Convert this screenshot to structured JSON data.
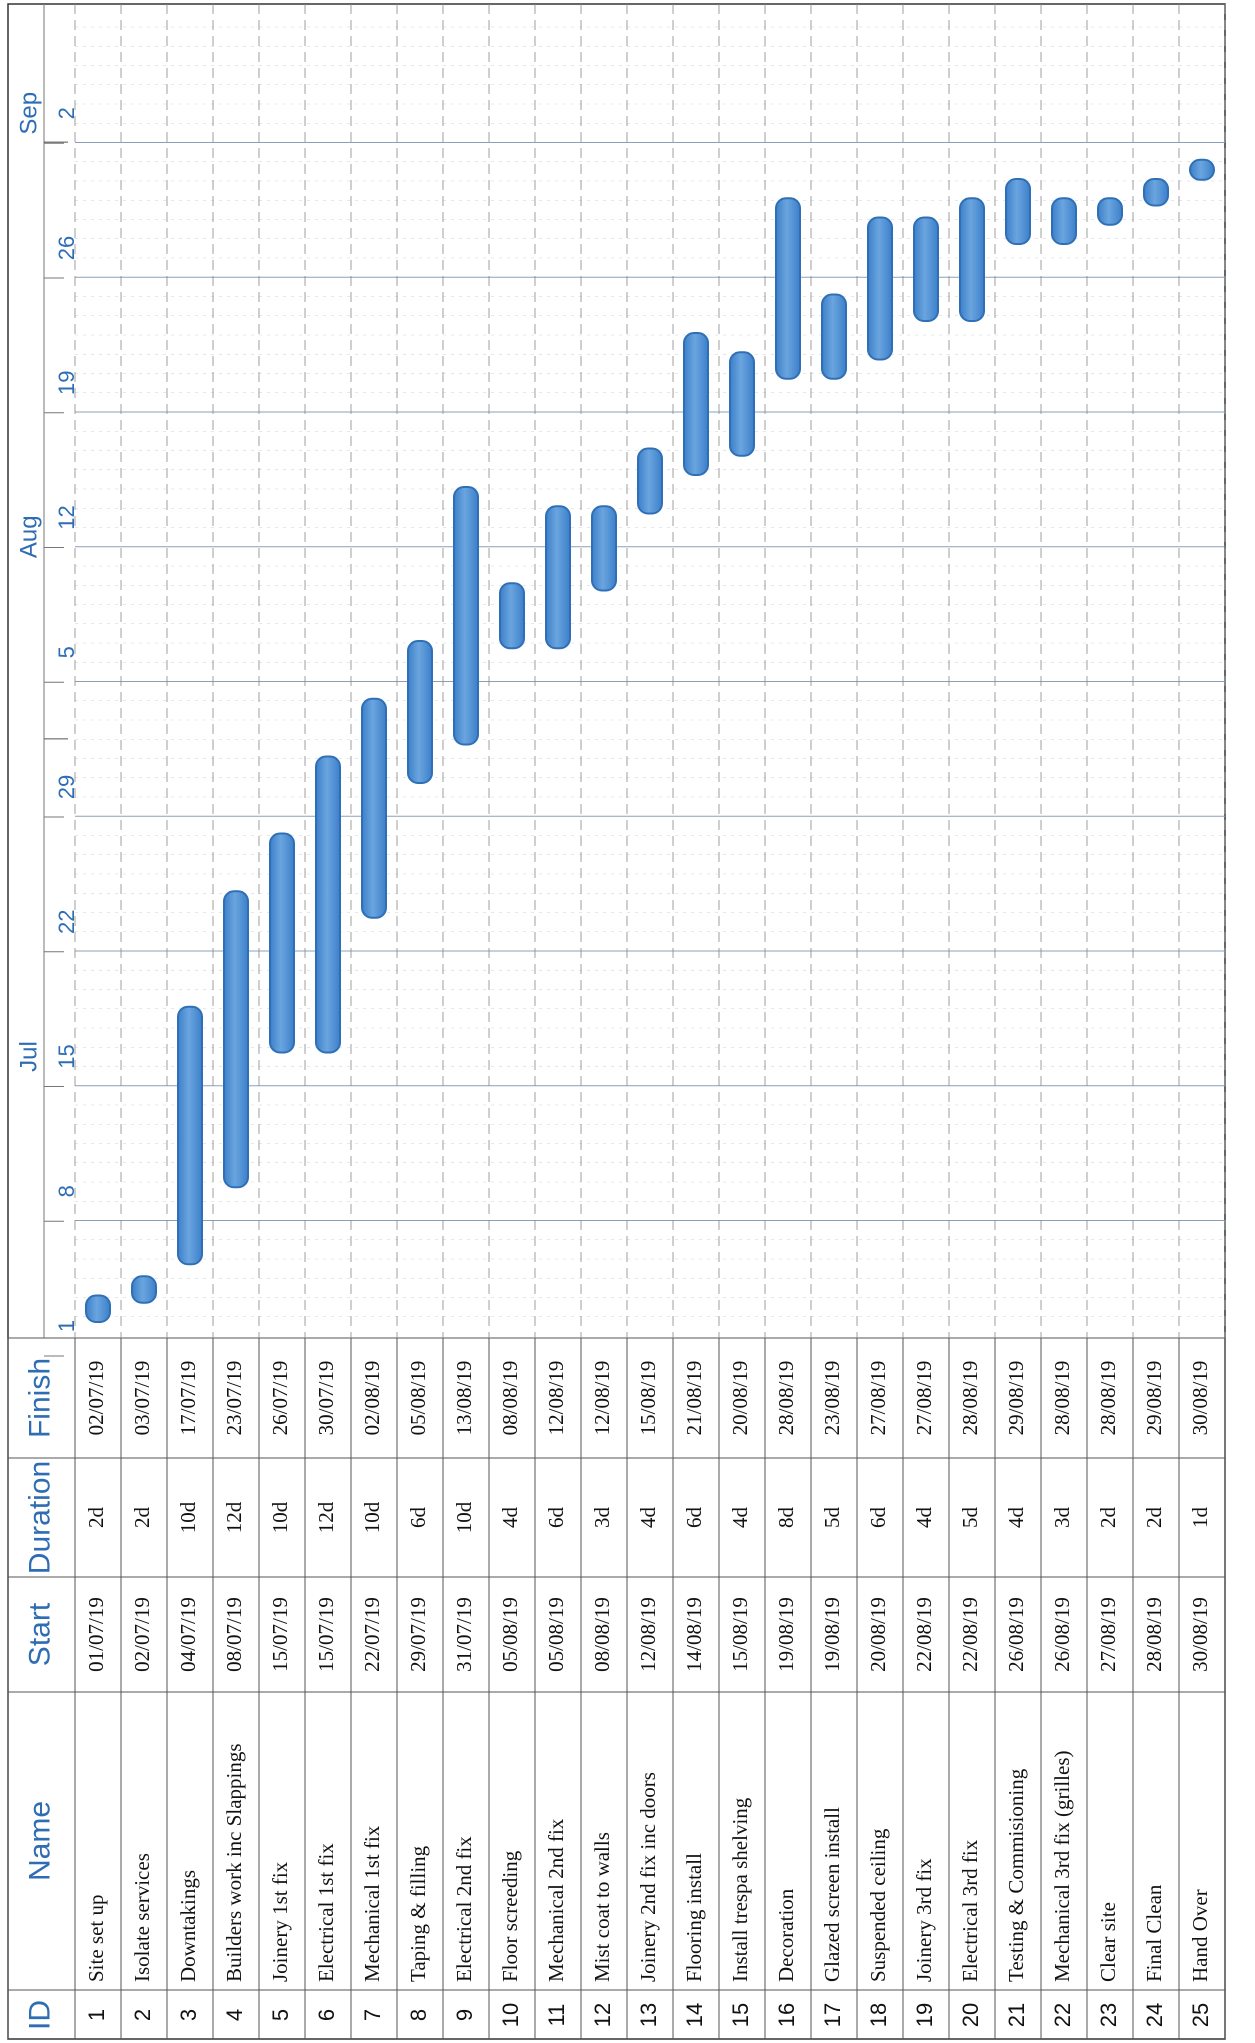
{
  "chart_data": {
    "type": "gantt",
    "columns": {
      "id": "ID",
      "name": "Name",
      "start": "Start",
      "duration": "Duration",
      "finish": "Finish"
    },
    "timeline": {
      "months": [
        "Jul",
        "Aug",
        "Sep"
      ],
      "week_ticks": [
        "1",
        "8",
        "15",
        "22",
        "29",
        "5",
        "12",
        "19",
        "26",
        "2"
      ]
    },
    "tasks": [
      {
        "id": "1",
        "name": "Site set up",
        "start": "01/07/19",
        "duration": "2d",
        "finish": "02/07/19"
      },
      {
        "id": "2",
        "name": "Isolate services",
        "start": "02/07/19",
        "duration": "2d",
        "finish": "03/07/19"
      },
      {
        "id": "3",
        "name": "Downtakings",
        "start": "04/07/19",
        "duration": "10d",
        "finish": "17/07/19"
      },
      {
        "id": "4",
        "name": "Builders work inc Slappings",
        "start": "08/07/19",
        "duration": "12d",
        "finish": "23/07/19"
      },
      {
        "id": "5",
        "name": "Joinery 1st fix",
        "start": "15/07/19",
        "duration": "10d",
        "finish": "26/07/19"
      },
      {
        "id": "6",
        "name": "Electrical 1st fix",
        "start": "15/07/19",
        "duration": "12d",
        "finish": "30/07/19"
      },
      {
        "id": "7",
        "name": "Mechanical 1st fix",
        "start": "22/07/19",
        "duration": "10d",
        "finish": "02/08/19"
      },
      {
        "id": "8",
        "name": "Taping & filling",
        "start": "29/07/19",
        "duration": "6d",
        "finish": "05/08/19"
      },
      {
        "id": "9",
        "name": "Electrical 2nd fix",
        "start": "31/07/19",
        "duration": "10d",
        "finish": "13/08/19"
      },
      {
        "id": "10",
        "name": "Floor screeding",
        "start": "05/08/19",
        "duration": "4d",
        "finish": "08/08/19"
      },
      {
        "id": "11",
        "name": "Mechanical 2nd fix",
        "start": "05/08/19",
        "duration": "6d",
        "finish": "12/08/19"
      },
      {
        "id": "12",
        "name": "Mist coat to walls",
        "start": "08/08/19",
        "duration": "3d",
        "finish": "12/08/19"
      },
      {
        "id": "13",
        "name": "Joinery 2nd fix inc doors",
        "start": "12/08/19",
        "duration": "4d",
        "finish": "15/08/19"
      },
      {
        "id": "14",
        "name": "Flooring install",
        "start": "14/08/19",
        "duration": "6d",
        "finish": "21/08/19"
      },
      {
        "id": "15",
        "name": "Install trespa shelving",
        "start": "15/08/19",
        "duration": "4d",
        "finish": "20/08/19"
      },
      {
        "id": "16",
        "name": "Decoration",
        "start": "19/08/19",
        "duration": "8d",
        "finish": "28/08/19"
      },
      {
        "id": "17",
        "name": "Glazed screen install",
        "start": "19/08/19",
        "duration": "5d",
        "finish": "23/08/19"
      },
      {
        "id": "18",
        "name": "Suspended ceiling",
        "start": "20/08/19",
        "duration": "6d",
        "finish": "27/08/19"
      },
      {
        "id": "19",
        "name": "Joinery 3rd fix",
        "start": "22/08/19",
        "duration": "4d",
        "finish": "27/08/19"
      },
      {
        "id": "20",
        "name": "Electrical 3rd fix",
        "start": "22/08/19",
        "duration": "5d",
        "finish": "28/08/19"
      },
      {
        "id": "21",
        "name": "Testing & Commisioning",
        "start": "26/08/19",
        "duration": "4d",
        "finish": "29/08/19"
      },
      {
        "id": "22",
        "name": "Mechanical 3rd fix (grilles)",
        "start": "26/08/19",
        "duration": "3d",
        "finish": "28/08/19"
      },
      {
        "id": "23",
        "name": "Clear site",
        "start": "27/08/19",
        "duration": "2d",
        "finish": "28/08/19"
      },
      {
        "id": "24",
        "name": "Final Clean",
        "start": "28/08/19",
        "duration": "2d",
        "finish": "29/08/19"
      },
      {
        "id": "25",
        "name": "Hand Over",
        "start": "30/08/19",
        "duration": "1d",
        "finish": "30/08/19"
      }
    ],
    "colors": {
      "bar_fill": "#6aa5df",
      "bar_stroke": "#2f6fb5",
      "header_text": "#2e6db4",
      "grid": "#9aa6b2"
    }
  }
}
